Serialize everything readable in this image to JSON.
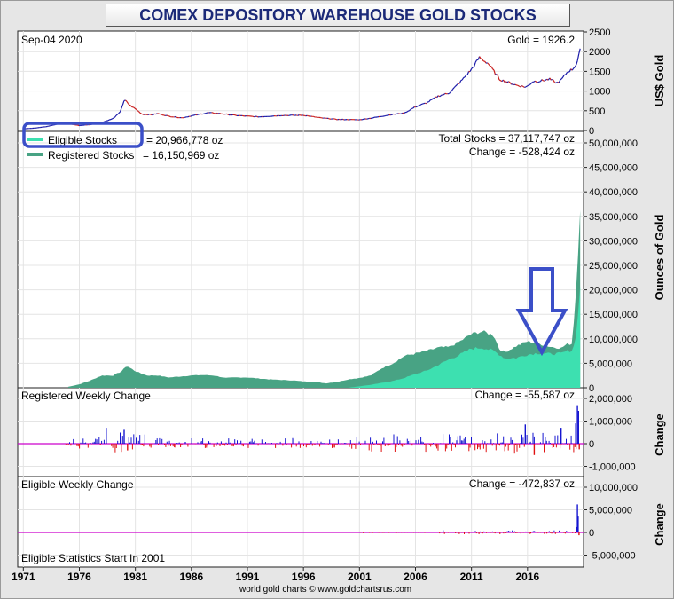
{
  "title": "COMEX DEPOSITORY WAREHOUSE GOLD STOCKS",
  "credit": "world gold charts © www.goldchartsrus.com",
  "colors": {
    "frame_bg": "#e6e6e6",
    "title_text": "#1c2a78",
    "eligible": "#3de0b0",
    "registered": "#48a384",
    "gold_price": "#1a1aa8",
    "gold_price_down": "#c81e1e",
    "change_up": "#1515d0",
    "change_down": "#e01010",
    "zero_line": "#cc00cc",
    "annotation_blue": "#3b4fc8"
  },
  "chart_data": [
    {
      "type": "line",
      "panel": "gold_price",
      "header_left": "Sep-04  2020",
      "header_right": "Gold = 1926.2",
      "ylabel": "US$ Gold",
      "ylim": [
        0,
        2500
      ],
      "yticks": [
        "2500",
        "2000",
        "1500",
        "1000",
        "500",
        "0"
      ],
      "ytick_values": [
        2500,
        2000,
        1500,
        1000,
        500,
        0
      ],
      "series": [
        {
          "x": [
            1971.0,
            1972.0,
            1973.0,
            1974.0,
            1974.9,
            1976.0,
            1977.0,
            1978.0,
            1979.0,
            1979.6,
            1980.05,
            1980.5,
            1981.0,
            1981.6,
            1982.5,
            1983.0,
            1984.0,
            1985.2,
            1986.0,
            1987.5,
            1988.5,
            1990.0,
            1992.0,
            1994.0,
            1996.0,
            1997.5,
            1999.0,
            2001.0,
            2002.0,
            2003.0,
            2004.0,
            2005.0,
            2006.0,
            2007.0,
            2008.0,
            2009.0,
            2010.0,
            2011.0,
            2011.7,
            2012.5,
            2013.5,
            2014.0,
            2015.0,
            2015.9,
            2016.5,
            2017.0,
            2018.0,
            2018.6,
            2019.0,
            2019.6,
            2020.0,
            2020.4,
            2020.7
          ],
          "y": [
            40,
            60,
            95,
            160,
            180,
            125,
            150,
            200,
            300,
            450,
            780,
            640,
            550,
            410,
            400,
            430,
            360,
            320,
            370,
            450,
            430,
            380,
            345,
            380,
            385,
            320,
            280,
            270,
            310,
            360,
            410,
            440,
            600,
            700,
            870,
            950,
            1230,
            1550,
            1850,
            1700,
            1300,
            1250,
            1150,
            1100,
            1250,
            1250,
            1300,
            1200,
            1280,
            1500,
            1550,
            1700,
            2030
          ]
        }
      ]
    },
    {
      "type": "area",
      "panel": "stocks",
      "ylabel": "Ounces of Gold",
      "ylim": [
        0,
        50000000
      ],
      "yticks": [
        "50,000,000",
        "45,000,000",
        "40,000,000",
        "35,000,000",
        "30,000,000",
        "25,000,000",
        "20,000,000",
        "15,000,000",
        "10,000,000",
        "5,000,000",
        "0"
      ],
      "ytick_values": [
        50000000,
        45000000,
        40000000,
        35000000,
        30000000,
        25000000,
        20000000,
        15000000,
        10000000,
        5000000,
        0
      ],
      "legend": {
        "eligible_label": "Eligible Stocks",
        "eligible_value": "= 20,966,778 oz",
        "registered_label": "Registered Stocks",
        "registered_value": "= 16,150,969 oz"
      },
      "total_text": "Total Stocks = 37,117,747 oz",
      "change_text": "Change = -528,424 oz",
      "series": [
        {
          "name": "Total Stocks",
          "x": [
            1975.0,
            1976.0,
            1977.0,
            1978.0,
            1979.0,
            1979.8,
            1980.2,
            1981.0,
            1982.0,
            1983.0,
            1984.0,
            1985.0,
            1986.0,
            1987.0,
            1988.0,
            1989.0,
            1990.0,
            1991.0,
            1992.0,
            1993.0,
            1994.0,
            1995.0,
            1996.0,
            1997.0,
            1998.0,
            1999.0,
            2000.0,
            2001.0,
            2002.0,
            2003.0,
            2004.0,
            2005.0,
            2006.0,
            2007.0,
            2008.0,
            2009.0,
            2010.0,
            2011.0,
            2012.0,
            2013.0,
            2013.5,
            2014.0,
            2015.0,
            2016.0,
            2017.0,
            2018.0,
            2019.0,
            2019.5,
            2020.0,
            2020.2,
            2020.4,
            2020.55,
            2020.7
          ],
          "y": [
            200000,
            700000,
            1500000,
            2500000,
            2500000,
            3400000,
            4500000,
            3400000,
            2500000,
            2500000,
            2100000,
            2300000,
            2500000,
            2600000,
            2500000,
            2000000,
            2100000,
            2100000,
            1900000,
            1700000,
            1600000,
            1500000,
            1300000,
            1200000,
            900000,
            1200000,
            1700000,
            2000000,
            2500000,
            4000000,
            5000000,
            6500000,
            7000000,
            7500000,
            8200000,
            8300000,
            9500000,
            11000000,
            11500000,
            10700000,
            7800000,
            7300000,
            8500000,
            9500000,
            9000000,
            8400000,
            8100000,
            8900000,
            9000000,
            16000000,
            22000000,
            30000000,
            37100000
          ]
        },
        {
          "name": "Eligible Stocks",
          "x": [
            1975.0,
            1980.0,
            1985.0,
            1990.0,
            1995.0,
            2000.0,
            2001.0,
            2002.0,
            2003.0,
            2004.0,
            2005.0,
            2006.0,
            2007.0,
            2008.0,
            2009.0,
            2010.0,
            2011.0,
            2012.0,
            2013.0,
            2014.0,
            2015.0,
            2016.0,
            2017.0,
            2018.0,
            2019.0,
            2019.5,
            2020.0,
            2020.2,
            2020.4,
            2020.55,
            2020.7
          ],
          "y": [
            0,
            0,
            0,
            0,
            0,
            0,
            300000,
            600000,
            1000000,
            1400000,
            2000000,
            2800000,
            3500000,
            4600000,
            5800000,
            6800000,
            8000000,
            8200000,
            7500000,
            6000000,
            6100000,
            6800000,
            7100000,
            6900000,
            7000000,
            7500000,
            7600000,
            9000000,
            12000000,
            16000000,
            20970000
          ]
        }
      ]
    },
    {
      "type": "bar",
      "panel": "registered_weekly_change",
      "header_left": "Registered Weekly Change",
      "header_right": "Change = -55,587 oz",
      "ylabel": "Change",
      "ylim": [
        -1500000,
        2200000
      ],
      "yticks": [
        "2,000,000",
        "1,000,000",
        "0",
        "-1,000,000"
      ],
      "ytick_values": [
        2000000,
        1000000,
        0,
        -1000000
      ]
    },
    {
      "type": "bar",
      "panel": "eligible_weekly_change",
      "header_left": "Eligible Weekly Change",
      "header_right": "Change = -472,837 oz",
      "footnote": "Eligible Statistics Start In 2001",
      "ylabel": "Change",
      "ylim": [
        -6500000,
        10500000
      ],
      "yticks": [
        "10,000,000",
        "5,000,000",
        "0",
        "-5,000,000"
      ],
      "ytick_values": [
        10000000,
        5000000,
        0,
        -5000000
      ]
    }
  ],
  "x_axis": {
    "xlim": [
      1970.5,
      2021.0
    ],
    "tick_labels": [
      "1971",
      "1976",
      "1981",
      "1986",
      "1991",
      "1996",
      "2001",
      "2006",
      "2011",
      "2016"
    ],
    "tick_values": [
      1971,
      1976,
      1981,
      1986,
      1991,
      1996,
      2001,
      2006,
      2011,
      2016
    ]
  }
}
